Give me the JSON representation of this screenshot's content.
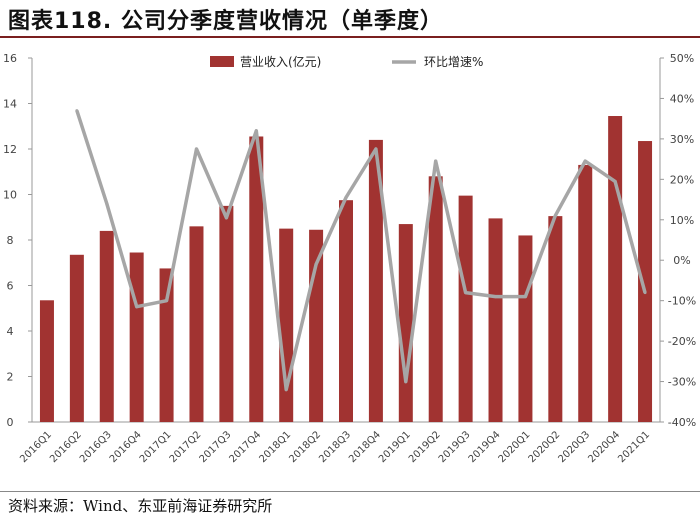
{
  "header": {
    "title": "图表118. 公司分季度营收情况（单季度）"
  },
  "footer": {
    "source": "资料来源：Wind、东亚前海证券研究所"
  },
  "colors": {
    "bar": "#a13331",
    "line": "#a6a6a6",
    "title_rule": "#7a1f1f"
  },
  "chart_data": {
    "type": "bar",
    "title": "",
    "categories": [
      "2016Q1",
      "2016Q2",
      "2016Q3",
      "2016Q4",
      "2017Q1",
      "2017Q2",
      "2017Q3",
      "2017Q4",
      "2018Q1",
      "2018Q2",
      "2018Q3",
      "2018Q4",
      "2019Q1",
      "2019Q2",
      "2019Q3",
      "2019Q4",
      "2020Q1",
      "2020Q2",
      "2020Q3",
      "2020Q4",
      "2021Q1"
    ],
    "series": [
      {
        "name": "营业收入(亿元)",
        "type": "bar",
        "axis": "left",
        "values": [
          5.35,
          7.35,
          8.4,
          7.45,
          6.75,
          8.6,
          9.5,
          12.55,
          8.5,
          8.45,
          9.75,
          12.4,
          8.7,
          10.8,
          9.95,
          8.95,
          8.2,
          9.05,
          11.3,
          13.45,
          12.35
        ]
      },
      {
        "name": "环比增速%",
        "type": "line",
        "axis": "right",
        "values": [
          null,
          37,
          14,
          -11.5,
          -10,
          27.5,
          10.5,
          32,
          -32,
          -1,
          15.5,
          27.5,
          -30,
          24.5,
          -8,
          -9,
          -9,
          11,
          24.5,
          19.5,
          -8
        ]
      }
    ],
    "y_left": {
      "range": [
        0,
        16
      ],
      "ticks": [
        "0",
        "2",
        "4",
        "6",
        "8",
        "10",
        "12",
        "14",
        "16"
      ]
    },
    "y_right": {
      "range": [
        -40,
        50
      ],
      "ticks": [
        "-40%",
        "-30%",
        "-20%",
        "-10%",
        "0%",
        "10%",
        "20%",
        "30%",
        "40%",
        "50%"
      ]
    },
    "legend": {
      "placement": "top-center"
    },
    "grid": false
  }
}
